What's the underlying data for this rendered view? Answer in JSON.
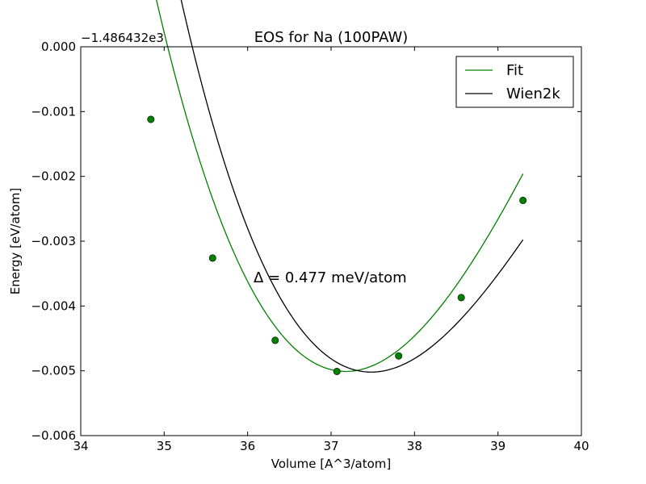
{
  "chart_data": {
    "type": "line",
    "title": "EOS for Na (100PAW)",
    "xlabel": "Volume [A^3/atom]",
    "ylabel": "Energy [eV/atom]",
    "y_offset_label": "−1.486432e3",
    "xlim": [
      34,
      40
    ],
    "ylim": [
      -0.006,
      0.0
    ],
    "x_ticks": [
      34,
      35,
      36,
      37,
      38,
      39,
      40
    ],
    "x_tick_labels": [
      "34",
      "35",
      "36",
      "37",
      "38",
      "39",
      "40"
    ],
    "y_ticks": [
      0.0,
      -0.001,
      -0.002,
      -0.003,
      -0.004,
      -0.005,
      -0.006
    ],
    "y_tick_labels": [
      "0.000",
      "−0.001",
      "−0.002",
      "−0.003",
      "−0.004",
      "−0.005",
      "−0.006"
    ],
    "grid": false,
    "legend_position": "top-right",
    "annotation": "Δ = 0.477 meV/atom",
    "series": [
      {
        "name": "Fit",
        "kind": "curve",
        "color": "#008000",
        "fit": {
          "v0": 37.175,
          "e0": -0.00501,
          "a": 0.000888,
          "b": 0.0001
        },
        "x_range": [
          34.84,
          39.3
        ]
      },
      {
        "name": "Wien2k",
        "kind": "curve",
        "color": "#000000",
        "fit": {
          "v0": 37.48,
          "e0": -0.00502,
          "a": 0.000835,
          "b": 0.00012
        },
        "x_range": [
          34.84,
          39.3
        ]
      },
      {
        "name": "",
        "kind": "points",
        "color": "#008000",
        "x": [
          34.84,
          35.58,
          36.33,
          37.07,
          37.81,
          38.56,
          39.3
        ],
        "y": [
          -0.00112,
          -0.00326,
          -0.00453,
          -0.00501,
          -0.00477,
          -0.00387,
          -0.00237
        ]
      }
    ]
  }
}
